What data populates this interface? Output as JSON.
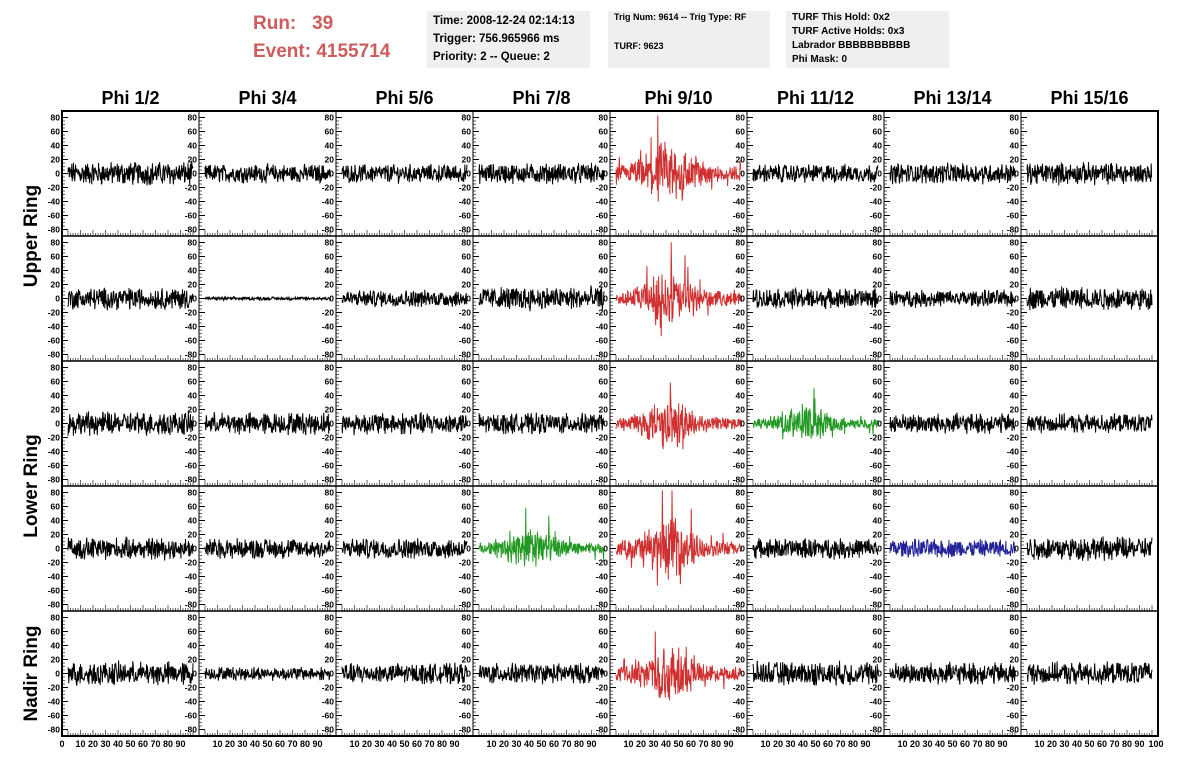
{
  "header": {
    "run_label": "Run:",
    "run_value": "39",
    "event_label": "Event:",
    "event_value": "4155714",
    "info1": [
      "Time: 2008-12-24 02:14:13",
      "Trigger: 756.965966 ms",
      "Priority: 2 -- Queue: 2"
    ],
    "info2": [
      "Trig Num: 9614 -- Trig Type: RF",
      "TURF: 9623"
    ],
    "info3": [
      "TURF This Hold: 0x2",
      "TURF Active Holds: 0x3",
      "Labrador BBBBBBBBBB",
      "Phi Mask: 0"
    ]
  },
  "chart_data": {
    "type": "line",
    "columns": [
      "Phi 1/2",
      "Phi 3/4",
      "Phi 5/6",
      "Phi 7/8",
      "Phi 9/10",
      "Phi 11/12",
      "Phi 13/14",
      "Phi 15/16"
    ],
    "rows": [
      {
        "name": "Upper Ring",
        "span": 2
      },
      {
        "name": "Lower Ring",
        "span": 2
      },
      {
        "name": "Nadir Ring",
        "span": 1
      }
    ],
    "ylim": [
      -85,
      85
    ],
    "y_ticks": [
      80,
      60,
      40,
      20,
      0,
      -20,
      -40,
      -60,
      -80
    ],
    "xlim": [
      0,
      100
    ],
    "x_tick_labels": [
      "0",
      "10",
      "20",
      "30",
      "40",
      "50",
      "60",
      "70",
      "80",
      "90",
      "100"
    ],
    "x_ticks_per_panel": [
      10,
      20,
      30,
      40,
      50,
      60,
      70,
      80,
      90
    ],
    "trace_colors": {
      "normal": "#000000",
      "triggered": "#d03030",
      "l2": "#229922",
      "l1": "#222299"
    },
    "panels": [
      {
        "row": 0,
        "col": 0,
        "color": "normal",
        "amp": 14
      },
      {
        "row": 0,
        "col": 1,
        "color": "normal",
        "amp": 11
      },
      {
        "row": 0,
        "col": 2,
        "color": "normal",
        "amp": 11
      },
      {
        "row": 0,
        "col": 3,
        "color": "normal",
        "amp": 12
      },
      {
        "row": 0,
        "col": 4,
        "color": "triggered",
        "amp": 26,
        "burst": true
      },
      {
        "row": 0,
        "col": 5,
        "color": "normal",
        "amp": 11
      },
      {
        "row": 0,
        "col": 6,
        "color": "normal",
        "amp": 12
      },
      {
        "row": 0,
        "col": 7,
        "color": "normal",
        "amp": 13
      },
      {
        "row": 1,
        "col": 0,
        "color": "normal",
        "amp": 13
      },
      {
        "row": 1,
        "col": 1,
        "color": "normal",
        "amp": 2
      },
      {
        "row": 1,
        "col": 2,
        "color": "normal",
        "amp": 10
      },
      {
        "row": 1,
        "col": 3,
        "color": "normal",
        "amp": 14
      },
      {
        "row": 1,
        "col": 4,
        "color": "triggered",
        "amp": 22,
        "burst": true
      },
      {
        "row": 1,
        "col": 5,
        "color": "normal",
        "amp": 12
      },
      {
        "row": 1,
        "col": 6,
        "color": "normal",
        "amp": 10
      },
      {
        "row": 1,
        "col": 7,
        "color": "normal",
        "amp": 14
      },
      {
        "row": 2,
        "col": 0,
        "color": "normal",
        "amp": 14
      },
      {
        "row": 2,
        "col": 1,
        "color": "normal",
        "amp": 13
      },
      {
        "row": 2,
        "col": 2,
        "color": "normal",
        "amp": 13
      },
      {
        "row": 2,
        "col": 3,
        "color": "normal",
        "amp": 12
      },
      {
        "row": 2,
        "col": 4,
        "color": "triggered",
        "amp": 20,
        "burst": true
      },
      {
        "row": 2,
        "col": 5,
        "color": "l2",
        "amp": 15,
        "burst": true
      },
      {
        "row": 2,
        "col": 6,
        "color": "normal",
        "amp": 12
      },
      {
        "row": 2,
        "col": 7,
        "color": "normal",
        "amp": 11
      },
      {
        "row": 3,
        "col": 0,
        "color": "normal",
        "amp": 13
      },
      {
        "row": 3,
        "col": 1,
        "color": "normal",
        "amp": 12
      },
      {
        "row": 3,
        "col": 2,
        "color": "normal",
        "amp": 12
      },
      {
        "row": 3,
        "col": 3,
        "color": "l2",
        "amp": 17,
        "burst": true
      },
      {
        "row": 3,
        "col": 4,
        "color": "triggered",
        "amp": 24,
        "burst": true
      },
      {
        "row": 3,
        "col": 5,
        "color": "normal",
        "amp": 12
      },
      {
        "row": 3,
        "col": 6,
        "color": "l1",
        "amp": 11
      },
      {
        "row": 3,
        "col": 7,
        "color": "normal",
        "amp": 14
      },
      {
        "row": 4,
        "col": 0,
        "color": "normal",
        "amp": 14
      },
      {
        "row": 4,
        "col": 1,
        "color": "normal",
        "amp": 8
      },
      {
        "row": 4,
        "col": 2,
        "color": "normal",
        "amp": 12
      },
      {
        "row": 4,
        "col": 3,
        "color": "normal",
        "amp": 12
      },
      {
        "row": 4,
        "col": 4,
        "color": "triggered",
        "amp": 22,
        "burst": true
      },
      {
        "row": 4,
        "col": 5,
        "color": "normal",
        "amp": 14
      },
      {
        "row": 4,
        "col": 6,
        "color": "normal",
        "amp": 13
      },
      {
        "row": 4,
        "col": 7,
        "color": "normal",
        "amp": 13
      }
    ]
  }
}
